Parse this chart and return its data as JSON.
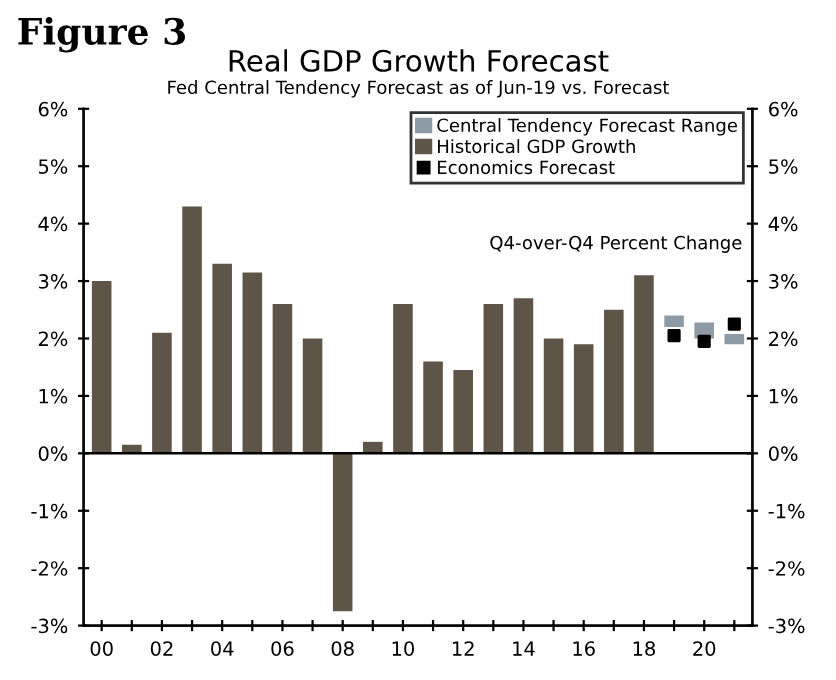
{
  "chart_data": {
    "type": "bar",
    "title": "Real GDP Growth Forecast",
    "subtitle": "Fed Central Tendency Forecast as of Jun-19 vs. Forecast",
    "annotations": [
      "Figure 3",
      "Q4-over-Q4 Percent Change"
    ],
    "categories": [
      "00",
      null,
      "02",
      null,
      "04",
      null,
      "06",
      null,
      "08",
      null,
      "10",
      null,
      "12",
      null,
      "14",
      null,
      "16",
      null,
      "18",
      null,
      "20",
      null
    ],
    "series": [
      {
        "name": "Central Tendency Forecast Range",
        "color": "#8c9ba5",
        "values": [
          null,
          null,
          null,
          null,
          null,
          null,
          null,
          null,
          null,
          null,
          null,
          null,
          null,
          null,
          null,
          null,
          null,
          null,
          null,
          0.2,
          0.28,
          0.18
        ],
        "base": [
          null,
          null,
          null,
          null,
          null,
          null,
          null,
          null,
          null,
          null,
          null,
          null,
          null,
          null,
          null,
          null,
          null,
          null,
          null,
          2.2,
          2.0,
          1.9
        ]
      },
      {
        "name": "Historical GDP Growth",
        "color": "#5f5448",
        "values": [
          3.0,
          0.15,
          2.1,
          4.3,
          3.3,
          3.15,
          2.6,
          2.0,
          -2.75,
          0.2,
          2.6,
          1.6,
          1.45,
          2.6,
          2.7,
          2.0,
          1.9,
          2.5,
          3.1,
          null,
          null,
          null
        ]
      },
      {
        "name": "Economics Forecast",
        "type": "scatter",
        "marker": "square",
        "color": "#000000",
        "values": [
          null,
          null,
          null,
          null,
          null,
          null,
          null,
          null,
          null,
          null,
          null,
          null,
          null,
          null,
          null,
          null,
          null,
          null,
          null,
          2.05,
          1.95,
          2.25
        ]
      }
    ],
    "ylim": [
      -3,
      6
    ],
    "yticks": [
      {
        "value": -3,
        "label": "-3%"
      },
      {
        "value": -2,
        "label": "-2%"
      },
      {
        "value": -1,
        "label": "-1%"
      },
      {
        "value": 0,
        "label": "0%"
      },
      {
        "value": 1,
        "label": "1%"
      },
      {
        "value": 2,
        "label": "2%"
      },
      {
        "value": 3,
        "label": "3%"
      },
      {
        "value": 4,
        "label": "4%"
      },
      {
        "value": 5,
        "label": "5%"
      },
      {
        "value": 6,
        "label": "6%"
      }
    ],
    "y2lim": [
      -3,
      6
    ],
    "y2ticks": [
      {
        "value": -3,
        "label": "-3%"
      },
      {
        "value": -2,
        "label": "-2%"
      },
      {
        "value": -1,
        "label": "-1%"
      },
      {
        "value": 0,
        "label": "0%"
      },
      {
        "value": 1,
        "label": "1%"
      },
      {
        "value": 2,
        "label": "2%"
      },
      {
        "value": 3,
        "label": "3%"
      },
      {
        "value": 4,
        "label": "4%"
      },
      {
        "value": 5,
        "label": "5%"
      },
      {
        "value": 6,
        "label": "6%"
      }
    ],
    "ref_lines": [
      {
        "axis": "y",
        "value": 0,
        "color": "#000000"
      }
    ],
    "legend": "top right"
  }
}
